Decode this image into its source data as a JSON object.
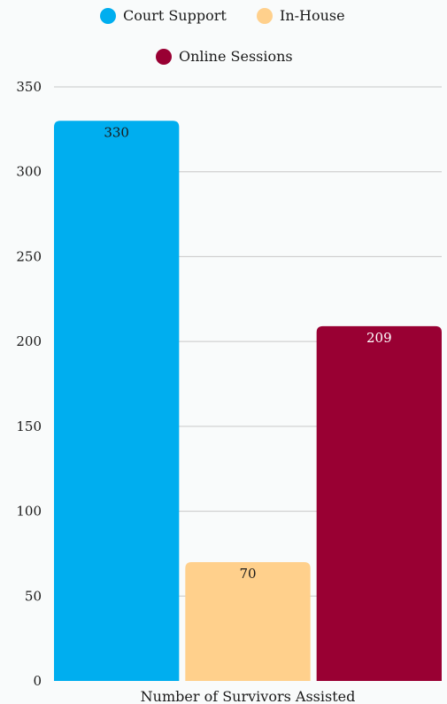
{
  "chart_data": {
    "type": "bar",
    "title": "",
    "xlabel": "Number of Survivors Assisted",
    "ylabel": "",
    "categories": [
      "Number of Survivors Assisted"
    ],
    "series": [
      {
        "name": "Court Support",
        "values": [
          330
        ],
        "color": "#00aeef"
      },
      {
        "name": "In-House",
        "values": [
          70
        ],
        "color": "#ffd08c"
      },
      {
        "name": "Online Sessions",
        "values": [
          209
        ],
        "color": "#990033"
      }
    ],
    "ylim": [
      0,
      350
    ],
    "yticks": [
      0,
      50,
      100,
      150,
      200,
      250,
      300,
      350
    ],
    "grid": true,
    "legend_position": "top"
  }
}
